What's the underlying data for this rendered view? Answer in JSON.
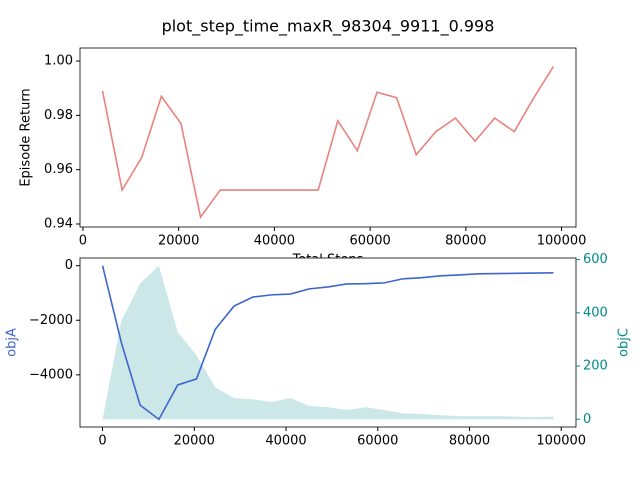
{
  "chart_data": [
    {
      "type": "line",
      "title": "plot_step_time_maxR_98304_9911_0.998",
      "xlabel": "Total Steps",
      "ylabel": "Episode Return",
      "x": [
        4096,
        8192,
        12288,
        16384,
        20480,
        24576,
        28672,
        32768,
        36864,
        40960,
        45056,
        49152,
        53248,
        57344,
        61440,
        65536,
        69632,
        73728,
        77824,
        81920,
        86016,
        90112,
        94208,
        98304
      ],
      "series": [
        {
          "color": "#e8837f",
          "values": [
            0.989,
            0.9525,
            0.9645,
            0.987,
            0.977,
            0.9425,
            0.9525,
            0.9525,
            0.9525,
            0.9525,
            0.9525,
            0.9525,
            0.978,
            0.967,
            0.9885,
            0.9865,
            0.9655,
            0.974,
            0.979,
            0.9705,
            0.979,
            0.974,
            0.9865,
            0.998
          ]
        }
      ],
      "xlim": [
        -614,
        103014
      ],
      "xticks": [
        0,
        20000,
        40000,
        60000,
        80000,
        100000
      ],
      "ylim": [
        0.9389,
        1.0048
      ],
      "yticks": [
        0.94,
        0.96,
        0.98,
        {
          "value": 1.0,
          "label": "1.00"
        }
      ]
    },
    {
      "type": "line",
      "ylabel": "objA",
      "ylabel_color": "#3d66cc",
      "y2label": "objC",
      "y2label_color": "#008b8b",
      "x": [
        0,
        4096,
        8192,
        12288,
        16384,
        20480,
        24576,
        28672,
        32768,
        36864,
        40960,
        45056,
        49152,
        53248,
        57344,
        61440,
        65536,
        69632,
        73728,
        77824,
        81920,
        86016,
        90112,
        94208,
        98304
      ],
      "series": [
        {
          "type": "line",
          "color": "#3d66cc",
          "values": [
            0,
            -2815,
            -5110,
            -5630,
            -4370,
            -4150,
            -2330,
            -1480,
            -1150,
            -1070,
            -1040,
            -850,
            -780,
            -670,
            -660,
            -630,
            -480,
            -440,
            -370,
            -340,
            -300,
            -290,
            -280,
            -270,
            -260
          ]
        },
        {
          "type": "area",
          "axis": "y2",
          "color": "#cce7e8",
          "values": [
            0,
            370,
            510,
            577,
            328,
            240,
            120,
            80,
            75,
            65,
            80,
            50,
            45,
            35,
            45,
            35,
            22,
            20,
            15,
            12,
            12,
            12,
            10,
            8,
            10
          ]
        }
      ],
      "xlim": [
        -4915,
        103219
      ],
      "xticks": [
        0,
        20000,
        40000,
        60000,
        80000,
        100000
      ],
      "ylim": [
        -5911,
        281
      ],
      "yticks": [
        {
          "value": -4000,
          "label": "−4000"
        },
        {
          "value": -2000,
          "label": "−2000"
        },
        0
      ],
      "y2lim": [
        -29,
        606
      ],
      "y2ticks": [
        0,
        200,
        400,
        600
      ]
    }
  ]
}
